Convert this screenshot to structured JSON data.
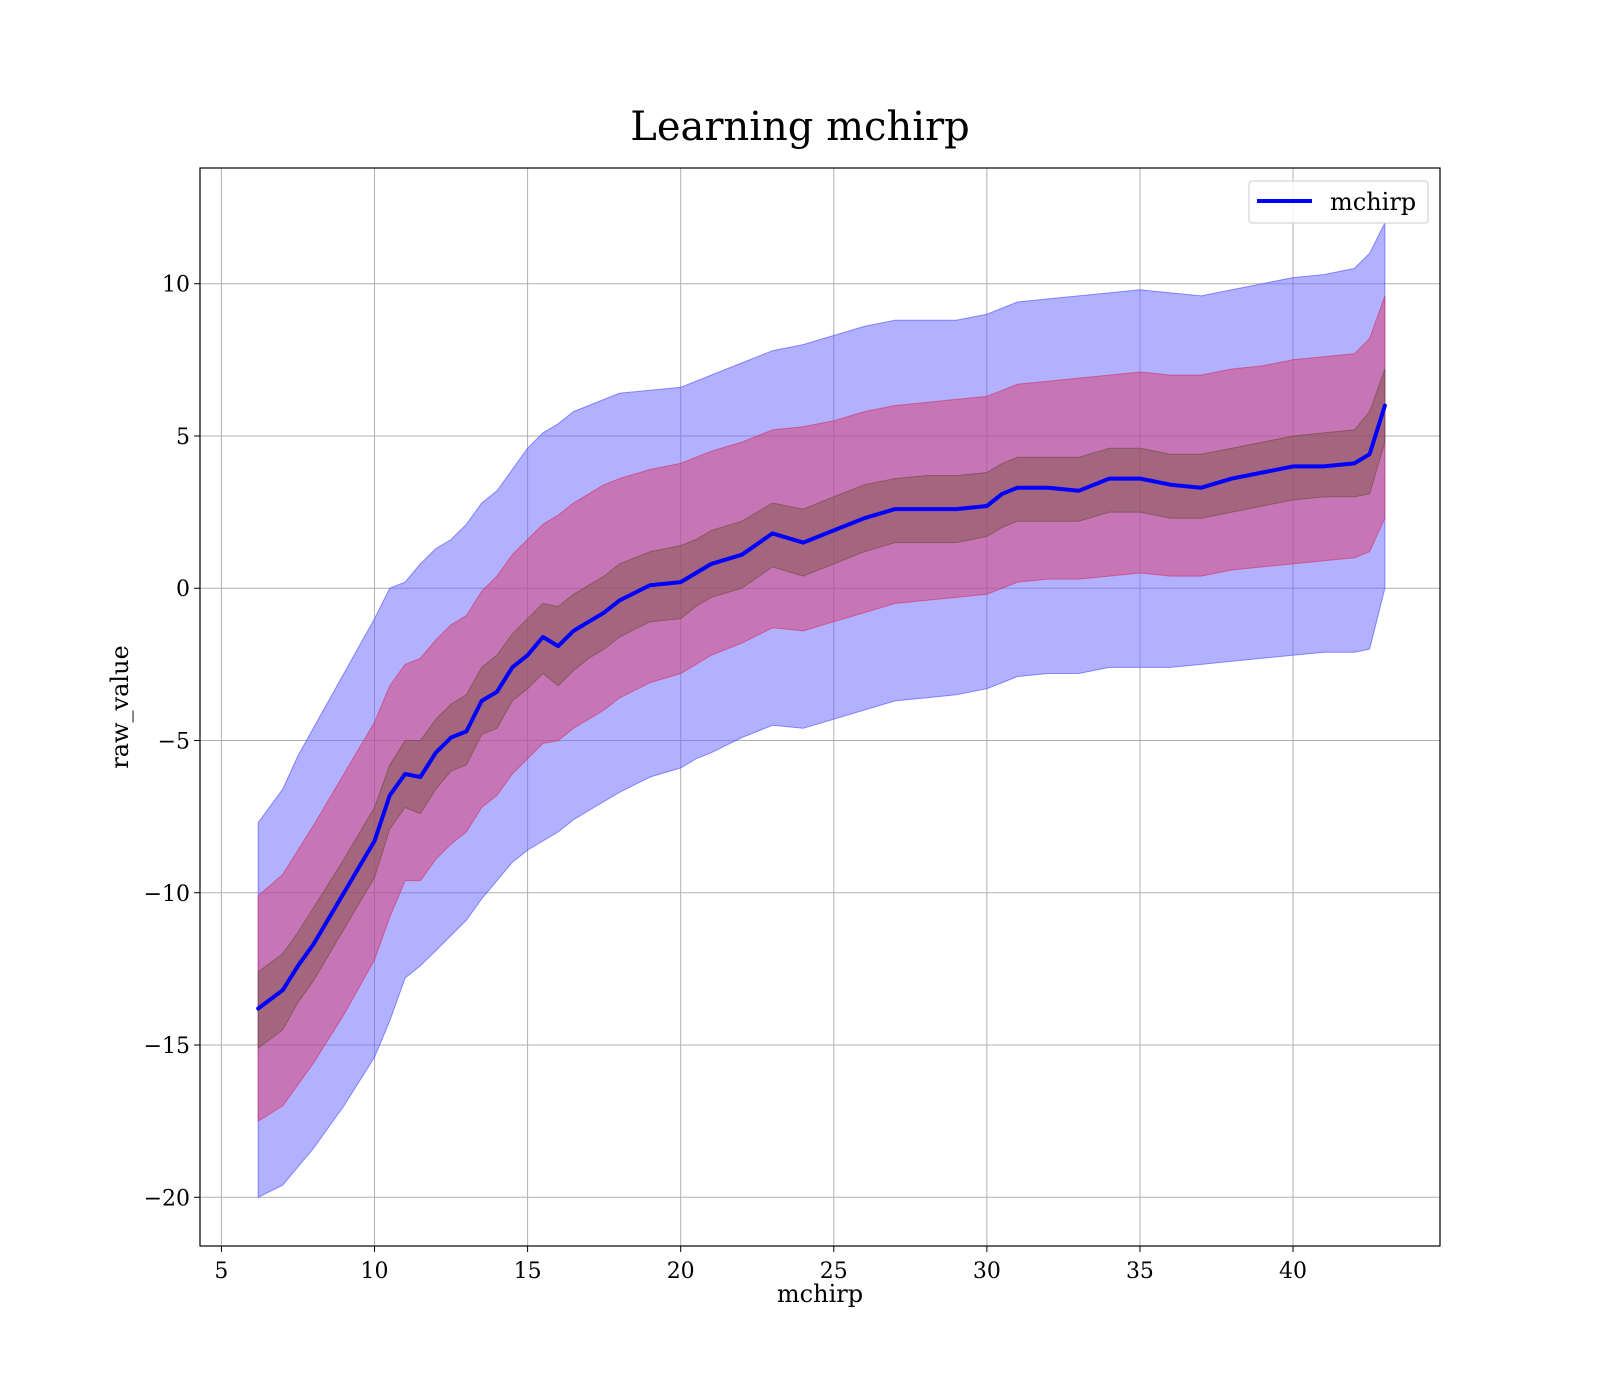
{
  "chart_data": {
    "type": "line",
    "title": "Learning mchirp",
    "xlabel": "mchirp",
    "ylabel": "raw_value",
    "xlim": [
      4.3,
      44.8
    ],
    "ylim": [
      -21.6,
      13.8
    ],
    "xticks": [
      5,
      10,
      15,
      20,
      25,
      30,
      35,
      40
    ],
    "yticks": [
      10,
      5,
      0,
      -5,
      -10,
      -15,
      -20
    ],
    "xtick_labels": [
      "5",
      "10",
      "15",
      "20",
      "25",
      "30",
      "35",
      "40"
    ],
    "ytick_labels": [
      "10",
      "5",
      "0",
      "−5",
      "−10",
      "−15",
      "−20"
    ],
    "grid": true,
    "legend_position": "top-right",
    "colors": {
      "line": "#0000ff",
      "outer_band": "#b0b0ff",
      "middle_band": "#c97aaf",
      "inner_band": "#a26e7c"
    },
    "series": [
      {
        "name": "mchirp",
        "x": [
          6.2,
          7,
          7.5,
          8,
          9,
          10,
          10.5,
          11,
          11.5,
          12,
          12.5,
          13,
          13.5,
          14,
          14.5,
          15,
          15.5,
          16,
          16.5,
          17,
          17.5,
          18,
          19,
          20,
          20.5,
          21,
          22,
          23,
          24,
          25,
          26,
          27,
          28,
          29,
          30,
          30.5,
          31,
          32,
          33,
          34,
          35,
          36,
          37,
          38,
          39,
          40,
          41,
          42,
          42.5,
          43
        ],
        "y": [
          -13.8,
          -13.2,
          -12.4,
          -11.7,
          -10,
          -8.3,
          -6.8,
          -6.1,
          -6.2,
          -5.4,
          -4.9,
          -4.7,
          -3.7,
          -3.4,
          -2.6,
          -2.2,
          -1.6,
          -1.9,
          -1.4,
          -1.1,
          -0.8,
          -0.4,
          0.1,
          0.2,
          0.5,
          0.8,
          1.1,
          1.8,
          1.5,
          1.9,
          2.3,
          2.6,
          2.6,
          2.6,
          2.7,
          3.1,
          3.3,
          3.3,
          3.2,
          3.6,
          3.6,
          3.4,
          3.3,
          3.6,
          3.8,
          4,
          4,
          4.1,
          4.4,
          6
        ],
        "outer_band_upper": [
          -7.7,
          -6.6,
          -5.5,
          -4.6,
          -2.8,
          -1.0,
          0.0,
          0.2,
          0.8,
          1.3,
          1.6,
          2.1,
          2.8,
          3.2,
          3.9,
          4.6,
          5.1,
          5.4,
          5.8,
          6.0,
          6.2,
          6.4,
          6.5,
          6.6,
          6.8,
          7.0,
          7.4,
          7.8,
          8.0,
          8.3,
          8.6,
          8.8,
          8.8,
          8.8,
          9.0,
          9.2,
          9.4,
          9.5,
          9.6,
          9.7,
          9.8,
          9.7,
          9.6,
          9.8,
          10.0,
          10.2,
          10.3,
          10.5,
          11.0,
          12.0
        ],
        "outer_band_lower": [
          -20,
          -19.6,
          -19.0,
          -18.4,
          -17.0,
          -15.4,
          -14.2,
          -12.8,
          -12.4,
          -11.9,
          -11.4,
          -10.9,
          -10.2,
          -9.6,
          -9.0,
          -8.6,
          -8.3,
          -8.0,
          -7.6,
          -7.3,
          -7.0,
          -6.7,
          -6.2,
          -5.9,
          -5.6,
          -5.4,
          -4.9,
          -4.5,
          -4.6,
          -4.3,
          -4.0,
          -3.7,
          -3.6,
          -3.5,
          -3.3,
          -3.1,
          -2.9,
          -2.8,
          -2.8,
          -2.6,
          -2.6,
          -2.6,
          -2.5,
          -2.4,
          -2.3,
          -2.2,
          -2.1,
          -2.1,
          -2.0,
          0.0
        ],
        "middle_band_upper": [
          -10.1,
          -9.4,
          -8.6,
          -7.8,
          -6.1,
          -4.4,
          -3.2,
          -2.5,
          -2.3,
          -1.7,
          -1.2,
          -0.9,
          -0.1,
          0.4,
          1.1,
          1.6,
          2.1,
          2.4,
          2.8,
          3.1,
          3.4,
          3.6,
          3.9,
          4.1,
          4.3,
          4.5,
          4.8,
          5.2,
          5.3,
          5.5,
          5.8,
          6.0,
          6.1,
          6.2,
          6.3,
          6.5,
          6.7,
          6.8,
          6.9,
          7.0,
          7.1,
          7.0,
          7.0,
          7.2,
          7.3,
          7.5,
          7.6,
          7.7,
          8.2,
          9.6
        ],
        "middle_band_lower": [
          -17.5,
          -17.0,
          -16.3,
          -15.6,
          -14.0,
          -12.2,
          -10.8,
          -9.6,
          -9.6,
          -8.9,
          -8.4,
          -8.0,
          -7.2,
          -6.8,
          -6.1,
          -5.6,
          -5.1,
          -5.0,
          -4.6,
          -4.3,
          -4.0,
          -3.6,
          -3.1,
          -2.8,
          -2.5,
          -2.2,
          -1.8,
          -1.3,
          -1.4,
          -1.1,
          -0.8,
          -0.5,
          -0.4,
          -0.3,
          -0.2,
          0.0,
          0.2,
          0.3,
          0.3,
          0.4,
          0.5,
          0.4,
          0.4,
          0.6,
          0.7,
          0.8,
          0.9,
          1.0,
          1.2,
          2.3
        ],
        "inner_band_upper": [
          -12.6,
          -12.0,
          -11.3,
          -10.5,
          -8.9,
          -7.2,
          -5.8,
          -5.0,
          -5.0,
          -4.3,
          -3.8,
          -3.5,
          -2.6,
          -2.2,
          -1.5,
          -1.0,
          -0.5,
          -0.6,
          -0.2,
          0.1,
          0.4,
          0.8,
          1.2,
          1.4,
          1.6,
          1.9,
          2.2,
          2.8,
          2.6,
          3.0,
          3.4,
          3.6,
          3.7,
          3.7,
          3.8,
          4.1,
          4.3,
          4.3,
          4.3,
          4.6,
          4.6,
          4.4,
          4.4,
          4.6,
          4.8,
          5.0,
          5.1,
          5.2,
          5.8,
          7.2
        ],
        "inner_band_lower": [
          -15.1,
          -14.5,
          -13.6,
          -12.9,
          -11.2,
          -9.5,
          -7.9,
          -7.2,
          -7.4,
          -6.6,
          -6.0,
          -5.8,
          -4.8,
          -4.6,
          -3.7,
          -3.3,
          -2.8,
          -3.2,
          -2.7,
          -2.3,
          -2.0,
          -1.6,
          -1.1,
          -1.0,
          -0.6,
          -0.3,
          0.0,
          0.7,
          0.4,
          0.8,
          1.2,
          1.5,
          1.5,
          1.5,
          1.7,
          2.0,
          2.2,
          2.2,
          2.2,
          2.5,
          2.5,
          2.3,
          2.3,
          2.5,
          2.7,
          2.9,
          3.0,
          3.0,
          3.1,
          4.8
        ]
      }
    ]
  }
}
